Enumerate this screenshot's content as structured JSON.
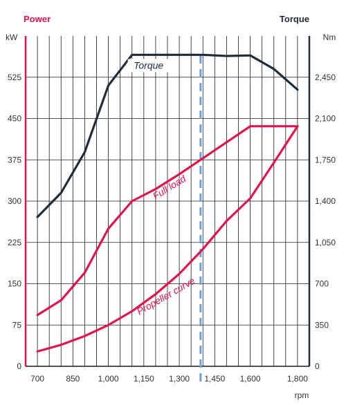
{
  "chart_data": {
    "type": "line",
    "left_axis": {
      "title": "Power",
      "unit": "kW",
      "range": [
        0,
        600
      ],
      "ticks": [
        0,
        75,
        150,
        225,
        300,
        375,
        450,
        525
      ]
    },
    "right_axis": {
      "title": "Torque",
      "unit": "Nm",
      "range": [
        0,
        2800
      ],
      "ticks": [
        0,
        350,
        700,
        1050,
        1400,
        1750,
        2100,
        2450
      ],
      "tick_labels": [
        "0",
        "350",
        "700",
        "1,050",
        "1,400",
        "1,750",
        "2,100",
        "2,450"
      ]
    },
    "x_axis": {
      "unit": "rpm",
      "range": [
        650,
        1850
      ],
      "ticks": [
        700,
        850,
        1000,
        1150,
        1300,
        1450,
        1600,
        1800
      ],
      "tick_labels": [
        "700",
        "850",
        "1,000",
        "1,150",
        "1,300",
        "1,450",
        "1,600",
        "1,800"
      ],
      "grid_step": 50
    },
    "grid": true,
    "marker_line_rpm": 1390,
    "series": [
      {
        "name": "Torque",
        "axis": "right",
        "color": "#1f2d3a",
        "points": [
          [
            700,
            1265
          ],
          [
            800,
            1470
          ],
          [
            900,
            1815
          ],
          [
            1000,
            2380
          ],
          [
            1100,
            2640
          ],
          [
            1200,
            2640
          ],
          [
            1300,
            2640
          ],
          [
            1400,
            2640
          ],
          [
            1500,
            2630
          ],
          [
            1600,
            2635
          ],
          [
            1700,
            2520
          ],
          [
            1800,
            2345
          ]
        ]
      },
      {
        "name": "Full load",
        "axis": "left",
        "color": "#e0144c",
        "points": [
          [
            700,
            93
          ],
          [
            800,
            120
          ],
          [
            900,
            170
          ],
          [
            1000,
            250
          ],
          [
            1100,
            300
          ],
          [
            1200,
            322
          ],
          [
            1300,
            349
          ],
          [
            1400,
            378
          ],
          [
            1500,
            407
          ],
          [
            1600,
            436
          ],
          [
            1700,
            436
          ],
          [
            1800,
            436
          ]
        ]
      },
      {
        "name": "Propeller curve",
        "axis": "left",
        "color": "#e0144c",
        "points": [
          [
            700,
            27
          ],
          [
            800,
            39
          ],
          [
            900,
            55
          ],
          [
            1000,
            75
          ],
          [
            1100,
            100
          ],
          [
            1200,
            131
          ],
          [
            1300,
            168
          ],
          [
            1400,
            213
          ],
          [
            1500,
            264
          ],
          [
            1600,
            305
          ],
          [
            1700,
            370
          ],
          [
            1800,
            436
          ]
        ]
      }
    ]
  }
}
